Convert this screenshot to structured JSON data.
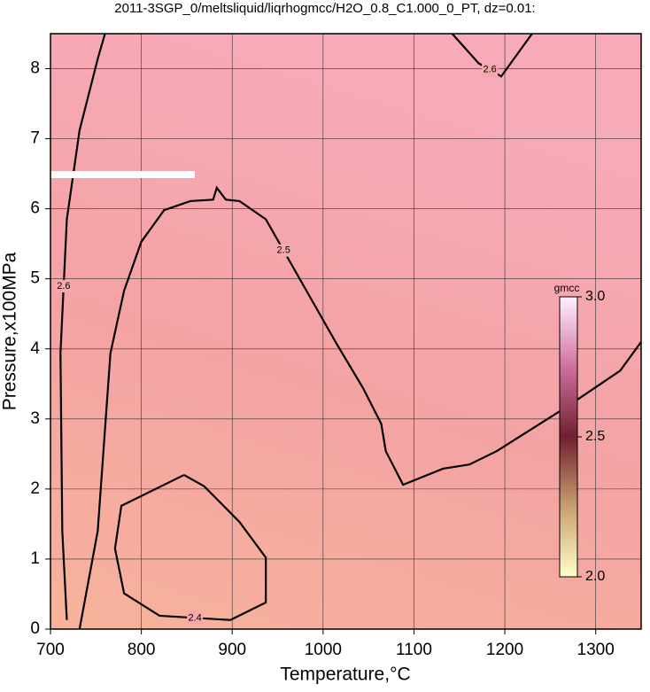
{
  "chart_data": {
    "type": "contour",
    "title": "2011-3SGP_0/meltsliquid/liqrhogmcc/H2O_0.8_C1.000_0_PT, dz=0.01:",
    "xlabel": "Temperature,°C",
    "ylabel": "Pressure,x100MPa",
    "xlim": [
      700,
      1350
    ],
    "ylim": [
      0,
      8.5
    ],
    "xticks": [
      700,
      800,
      900,
      1000,
      1100,
      1200,
      1300
    ],
    "yticks": [
      0,
      1,
      2,
      3,
      4,
      5,
      6,
      7,
      8
    ],
    "grid": true,
    "contours": [
      {
        "level": 2.4,
        "x": [
          847,
          778,
          771,
          781,
          820,
          898,
          937,
          937,
          908,
          869,
          847
        ],
        "y": [
          2.2,
          1.76,
          1.15,
          0.51,
          0.19,
          0.13,
          0.38,
          1.02,
          1.53,
          2.04,
          2.2
        ]
      },
      {
        "level": 2.5,
        "x": [
          732,
          752,
          766,
          781,
          800,
          825,
          854,
          879,
          883,
          893,
          908,
          937,
          976,
          1015,
          1044,
          1064,
          1069,
          1088,
          1132,
          1161,
          1191,
          1269,
          1327,
          1350
        ],
        "y": [
          0,
          1.4,
          3.94,
          4.83,
          5.53,
          5.98,
          6.11,
          6.13,
          6.3,
          6.13,
          6.11,
          5.85,
          4.96,
          4.07,
          3.44,
          2.93,
          2.54,
          2.06,
          2.29,
          2.35,
          2.54,
          3.18,
          3.69,
          4.1
        ]
      },
      {
        "level": 2.6,
        "x": [
          718,
          713,
          711,
          718,
          732,
          752,
          760
        ],
        "y": [
          0.13,
          1.4,
          3.94,
          5.85,
          7.12,
          8.14,
          8.5
        ]
      },
      {
        "level": 2.6,
        "x": [
          1142,
          1171,
          1196,
          1230
        ],
        "y": [
          8.5,
          8.08,
          7.89,
          8.5
        ]
      }
    ],
    "colorbar": {
      "label": "gmcc",
      "lim": [
        2,
        3
      ],
      "ticks": [
        {
          "value": 2,
          "label": "2.0"
        },
        2.5,
        {
          "value": 3,
          "label": "3.0"
        }
      ]
    }
  }
}
